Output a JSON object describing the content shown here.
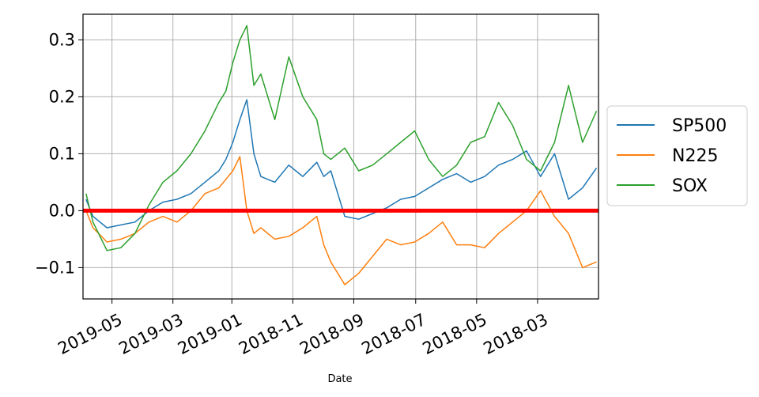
{
  "chart_data": {
    "type": "line",
    "xlabel": "Date",
    "ylabel": "",
    "title": "",
    "x_ticks": [
      "2019-05",
      "2019-03",
      "2019-01",
      "2018-11",
      "2018-09",
      "2018-07",
      "2018-05",
      "2018-03"
    ],
    "y_ticks": [
      -0.1,
      0.0,
      0.1,
      0.2,
      0.3
    ],
    "y_tick_labels": [
      "−0.1",
      "0.0",
      "0.1",
      "0.2",
      "0.3"
    ],
    "ylim": [
      -0.155,
      0.345
    ],
    "grid": true,
    "legend_position": "right",
    "baseline": {
      "value": 0.0,
      "color": "#ff0000"
    },
    "series": [
      {
        "name": "SP500",
        "color": "#1f77b4",
        "x": [
          "2019-05-27",
          "2019-05-20",
          "2019-05-06",
          "2019-04-22",
          "2019-04-08",
          "2019-03-25",
          "2019-03-11",
          "2019-02-25",
          "2019-02-11",
          "2019-01-28",
          "2019-01-14",
          "2019-01-07",
          "2018-12-31",
          "2018-12-24",
          "2018-12-17",
          "2018-12-10",
          "2018-12-03",
          "2018-11-19",
          "2018-11-05",
          "2018-10-22",
          "2018-10-08",
          "2018-10-01",
          "2018-09-24",
          "2018-09-10",
          "2018-08-27",
          "2018-08-13",
          "2018-07-30",
          "2018-07-16",
          "2018-07-02",
          "2018-06-18",
          "2018-06-04",
          "2018-05-21",
          "2018-05-07",
          "2018-04-23",
          "2018-04-09",
          "2018-03-26",
          "2018-03-12",
          "2018-02-26",
          "2018-02-12",
          "2018-01-29",
          "2018-01-15",
          "2018-01-01"
        ],
        "values": [
          0.02,
          -0.01,
          -0.03,
          -0.025,
          -0.02,
          0.0,
          0.015,
          0.02,
          0.03,
          0.05,
          0.07,
          0.09,
          0.12,
          0.16,
          0.195,
          0.1,
          0.06,
          0.05,
          0.08,
          0.06,
          0.085,
          0.06,
          0.07,
          -0.01,
          -0.015,
          -0.005,
          0.005,
          0.02,
          0.025,
          0.04,
          0.055,
          0.065,
          0.05,
          0.06,
          0.08,
          0.09,
          0.105,
          0.06,
          0.1,
          0.02,
          0.04,
          0.075
        ]
      },
      {
        "name": "N225",
        "color": "#ff7f0e",
        "x": [
          "2019-05-27",
          "2019-05-20",
          "2019-05-06",
          "2019-04-22",
          "2019-04-08",
          "2019-03-25",
          "2019-03-11",
          "2019-02-25",
          "2019-02-11",
          "2019-01-28",
          "2019-01-14",
          "2019-01-07",
          "2018-12-31",
          "2018-12-24",
          "2018-12-17",
          "2018-12-10",
          "2018-12-03",
          "2018-11-19",
          "2018-11-05",
          "2018-10-22",
          "2018-10-08",
          "2018-10-01",
          "2018-09-24",
          "2018-09-10",
          "2018-08-27",
          "2018-08-13",
          "2018-07-30",
          "2018-07-16",
          "2018-07-02",
          "2018-06-18",
          "2018-06-04",
          "2018-05-21",
          "2018-05-07",
          "2018-04-23",
          "2018-04-09",
          "2018-03-26",
          "2018-03-12",
          "2018-02-26",
          "2018-02-12",
          "2018-01-29",
          "2018-01-15",
          "2018-01-01"
        ],
        "values": [
          0.0,
          -0.03,
          -0.055,
          -0.05,
          -0.04,
          -0.02,
          -0.01,
          -0.02,
          0.0,
          0.03,
          0.04,
          0.055,
          0.07,
          0.095,
          0.0,
          -0.04,
          -0.03,
          -0.05,
          -0.045,
          -0.03,
          -0.01,
          -0.06,
          -0.09,
          -0.13,
          -0.11,
          -0.08,
          -0.05,
          -0.06,
          -0.055,
          -0.04,
          -0.02,
          -0.06,
          -0.06,
          -0.065,
          -0.04,
          -0.02,
          0.0,
          0.035,
          -0.01,
          -0.04,
          -0.1,
          -0.09
        ]
      },
      {
        "name": "SOX",
        "color": "#2ca02c",
        "x": [
          "2019-05-27",
          "2019-05-20",
          "2019-05-06",
          "2019-04-22",
          "2019-04-08",
          "2019-03-25",
          "2019-03-11",
          "2019-02-25",
          "2019-02-11",
          "2019-01-28",
          "2019-01-14",
          "2019-01-07",
          "2018-12-31",
          "2018-12-24",
          "2018-12-17",
          "2018-12-10",
          "2018-12-03",
          "2018-11-19",
          "2018-11-05",
          "2018-10-22",
          "2018-10-08",
          "2018-10-01",
          "2018-09-24",
          "2018-09-10",
          "2018-08-27",
          "2018-08-13",
          "2018-07-30",
          "2018-07-16",
          "2018-07-02",
          "2018-06-18",
          "2018-06-04",
          "2018-05-21",
          "2018-05-07",
          "2018-04-23",
          "2018-04-09",
          "2018-03-26",
          "2018-03-12",
          "2018-02-26",
          "2018-02-12",
          "2018-01-29",
          "2018-01-15",
          "2018-01-01"
        ],
        "values": [
          0.03,
          -0.02,
          -0.07,
          -0.065,
          -0.04,
          0.01,
          0.05,
          0.07,
          0.1,
          0.14,
          0.19,
          0.21,
          0.26,
          0.3,
          0.325,
          0.22,
          0.24,
          0.16,
          0.27,
          0.2,
          0.16,
          0.1,
          0.09,
          0.11,
          0.07,
          0.08,
          0.1,
          0.12,
          0.14,
          0.09,
          0.06,
          0.08,
          0.12,
          0.13,
          0.19,
          0.15,
          0.09,
          0.07,
          0.12,
          0.22,
          0.12,
          0.175
        ]
      }
    ]
  }
}
